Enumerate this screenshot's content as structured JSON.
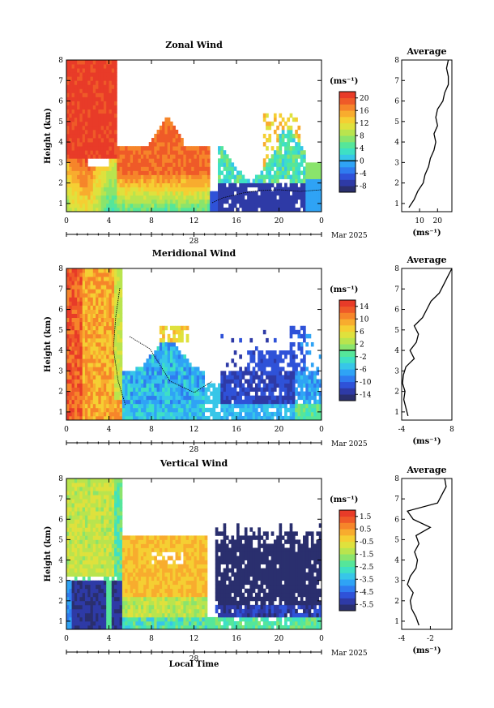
{
  "date_label": "Mar 2025",
  "day_label": "28",
  "xlabel": "Local Time",
  "ylabel": "Height (km)",
  "unit": "(ms⁻¹)",
  "average_title": "Average",
  "colormap": [
    "#2a2f6e",
    "#2e3aa6",
    "#2f52d8",
    "#2f7bef",
    "#2fa3f5",
    "#37c6e8",
    "#3ee0c4",
    "#55e69a",
    "#8ae46c",
    "#b9e44e",
    "#dfe13d",
    "#f5cf33",
    "#f8ac2e",
    "#f6852a",
    "#ef5a28",
    "#e83b28"
  ],
  "panels": [
    {
      "title": "Zonal Wind",
      "colorbar_ticks": [
        "20",
        "16",
        "12",
        "8",
        "4",
        "0",
        "-4",
        "-8"
      ],
      "colorbar_range": [
        -10,
        22
      ],
      "zero_line": 0,
      "average_xticks": [
        "10",
        "20"
      ],
      "average_xrange": [
        0,
        28
      ]
    },
    {
      "title": "Meridional Wind",
      "colorbar_ticks": [
        "14",
        "10",
        "6",
        "2",
        "-2",
        "-6",
        "-10",
        "-14"
      ],
      "colorbar_range": [
        -16,
        16
      ],
      "zero_line": 0,
      "average_xticks": [
        "-4",
        "8"
      ],
      "average_xrange": [
        -4,
        8
      ]
    },
    {
      "title": "Vertical Wind",
      "colorbar_ticks": [
        "1.5",
        "0.5",
        "-0.5",
        "-1.5",
        "-2.5",
        "-3.5",
        "-4.5",
        "-5.5"
      ],
      "colorbar_range": [
        -6.0,
        2.0
      ],
      "zero_line": null,
      "average_xticks": [
        "-4",
        "-2"
      ],
      "average_xrange": [
        -4,
        -0.5
      ]
    }
  ],
  "chart_data": [
    {
      "type": "heatmap",
      "title": "Zonal Wind",
      "xlabel": "",
      "ylabel": "Height (km)",
      "x_ticks": [
        "0",
        "4",
        "8",
        "12",
        "16",
        "20",
        "0"
      ],
      "y_ticks": [
        "1",
        "2",
        "3",
        "4",
        "5",
        "6",
        "7",
        "8"
      ],
      "xlim": [
        0,
        24
      ],
      "ylim": [
        0.6,
        8
      ],
      "colorbar_label": "(ms⁻¹)",
      "colorbar_ticks": [
        20,
        16,
        12,
        8,
        4,
        0,
        -4,
        -8
      ],
      "average_profile": {
        "x_ticks": [
          10,
          20
        ],
        "height": [
          0.8,
          1.2,
          1.6,
          2.0,
          2.4,
          2.8,
          3.2,
          3.6,
          4.0,
          4.4,
          4.8,
          5.2,
          5.6,
          6.0,
          6.4,
          6.8,
          7.2,
          7.6,
          8.0
        ],
        "value": [
          4,
          7,
          9,
          12,
          13,
          15,
          16,
          18,
          19,
          18,
          20,
          19,
          20,
          23,
          24,
          26,
          26,
          25,
          26
        ]
      }
    },
    {
      "type": "heatmap",
      "title": "Meridional Wind",
      "xlabel": "",
      "ylabel": "Height (km)",
      "x_ticks": [
        "0",
        "4",
        "8",
        "12",
        "16",
        "20",
        "0"
      ],
      "y_ticks": [
        "1",
        "2",
        "3",
        "4",
        "5",
        "6",
        "7",
        "8"
      ],
      "xlim": [
        0,
        24
      ],
      "ylim": [
        0.6,
        8
      ],
      "colorbar_label": "(ms⁻¹)",
      "colorbar_ticks": [
        14,
        10,
        6,
        2,
        -2,
        -6,
        -10,
        -14
      ],
      "average_profile": {
        "x_ticks": [
          -4,
          8
        ],
        "height": [
          0.8,
          1.2,
          1.6,
          2.0,
          2.4,
          2.8,
          3.2,
          3.6,
          4.0,
          4.4,
          4.8,
          5.2,
          5.6,
          6.0,
          6.4,
          6.8,
          7.2,
          7.6,
          8.0
        ],
        "value": [
          -2.5,
          -3,
          -3.5,
          -3.2,
          -3.8,
          -3.6,
          -3,
          -1,
          -2,
          -0.5,
          0,
          -1,
          1,
          2,
          3,
          5,
          6,
          7,
          8
        ]
      }
    },
    {
      "type": "heatmap",
      "title": "Vertical Wind",
      "xlabel": "Local Time",
      "ylabel": "Height (km)",
      "x_ticks": [
        "0",
        "4",
        "8",
        "12",
        "16",
        "20",
        "0"
      ],
      "y_ticks": [
        "1",
        "2",
        "3",
        "4",
        "5",
        "6",
        "7",
        "8"
      ],
      "xlim": [
        0,
        24
      ],
      "ylim": [
        0.6,
        8
      ],
      "colorbar_label": "(ms⁻¹)",
      "colorbar_ticks": [
        1.5,
        0.5,
        -0.5,
        -1.5,
        -2.5,
        -3.5,
        -4.5,
        -5.5
      ],
      "average_profile": {
        "x_ticks": [
          -4,
          -2
        ],
        "height": [
          0.8,
          1.2,
          1.6,
          2.0,
          2.4,
          2.8,
          3.2,
          3.6,
          4.0,
          4.4,
          4.8,
          5.2,
          5.6,
          6.0,
          6.4,
          6.8,
          7.2,
          7.6,
          8.0
        ],
        "value": [
          -2.8,
          -3,
          -3.3,
          -3.4,
          -3.2,
          -3.6,
          -3.4,
          -3.0,
          -2.9,
          -3.1,
          -2.8,
          -3.0,
          -2.0,
          -3.2,
          -3.6,
          -1.5,
          -1.2,
          -0.9,
          -1.0
        ]
      }
    }
  ]
}
